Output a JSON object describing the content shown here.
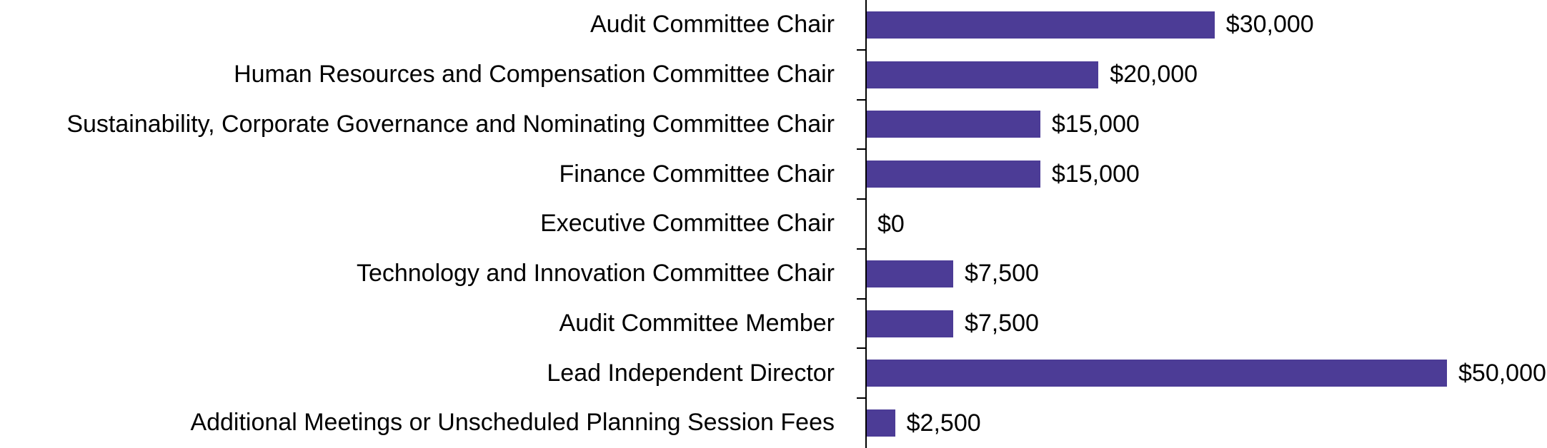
{
  "chart_data": {
    "type": "bar",
    "orientation": "horizontal",
    "title": "",
    "xlabel": "",
    "ylabel": "",
    "categories": [
      "Audit Committee Chair",
      "Human Resources and Compensation Committee Chair",
      "Sustainability, Corporate Governance and Nominating Committee Chair",
      "Finance Committee Chair",
      "Executive Committee Chair",
      "Technology and Innovation Committee Chair",
      "Audit Committee Member",
      "Lead Independent Director",
      "Additional Meetings or Unscheduled Planning Session Fees"
    ],
    "values": [
      30000,
      20000,
      15000,
      15000,
      0,
      7500,
      7500,
      50000,
      2500
    ],
    "value_labels": [
      "$30,000",
      "$20,000",
      "$15,000",
      "$15,000",
      "$0",
      "$7,500",
      "$7,500",
      "$50,000",
      "$2,500"
    ],
    "xlim": [
      0,
      50000
    ],
    "grid": false,
    "legend_position": "none",
    "colors": {
      "bar": "#4C3C96",
      "axis": "#000000",
      "text": "#000000",
      "background": "#FFFFFF"
    }
  }
}
